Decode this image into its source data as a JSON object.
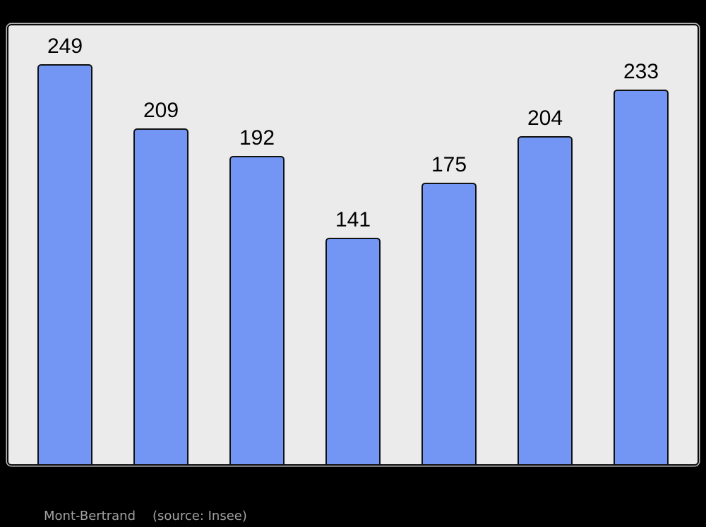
{
  "chart_data": {
    "type": "bar",
    "values": [
      249,
      209,
      192,
      141,
      175,
      204,
      233
    ],
    "data_labels": [
      249,
      209,
      192,
      141,
      175,
      204,
      233
    ],
    "title": "",
    "xlabel": "",
    "ylabel": "",
    "ylim": [
      0,
      273
    ],
    "grid": false,
    "legend": false,
    "bar_color": "#7396F5",
    "bar_border_color": "#111111",
    "plot_background": "#EBEBEB",
    "frame_border_color": "#0A0A0A",
    "page_background": "#000000",
    "label_color": "#000000"
  },
  "footer": {
    "title": "Mont-Bertrand",
    "source": "(source: Insee)"
  }
}
